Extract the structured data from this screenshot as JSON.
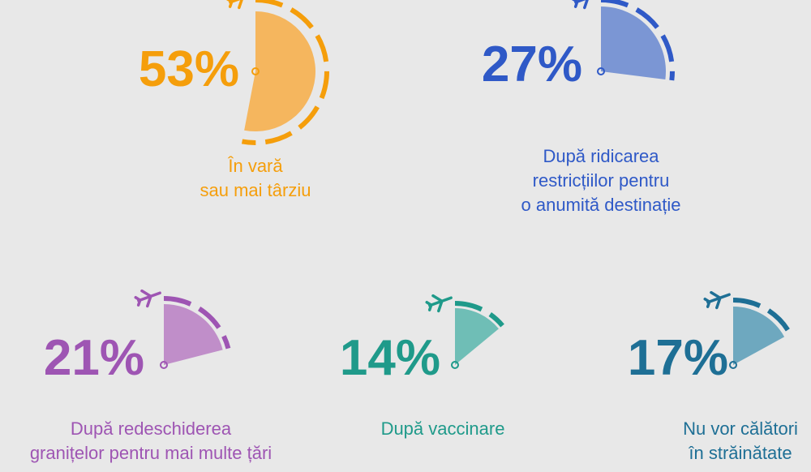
{
  "chart_data": {
    "type": "pie",
    "items": [
      {
        "value": 53,
        "label": "53%",
        "caption": [
          "În vară",
          "sau mai târziu"
        ],
        "color": "#f59e0b",
        "fill": "#f5b65e"
      },
      {
        "value": 27,
        "label": "27%",
        "caption": [
          "După ridicarea",
          "restricțiilor pentru",
          "o anumită destinație"
        ],
        "color": "#2f59c7",
        "fill": "#7b96d4"
      },
      {
        "value": 21,
        "label": "21%",
        "caption": [
          "După redeschiderea",
          "granițelor pentru mai multe țări"
        ],
        "color": "#9e55b3",
        "fill": "#c08ec9"
      },
      {
        "value": 14,
        "label": "14%",
        "caption": [
          "După vaccinare"
        ],
        "color": "#1f9a8a",
        "fill": "#6fbeb6"
      },
      {
        "value": 17,
        "label": "17%",
        "caption": [
          "Nu vor călători",
          "în străinătate"
        ],
        "color": "#1e6f95",
        "fill": "#6ea8bf"
      }
    ]
  }
}
